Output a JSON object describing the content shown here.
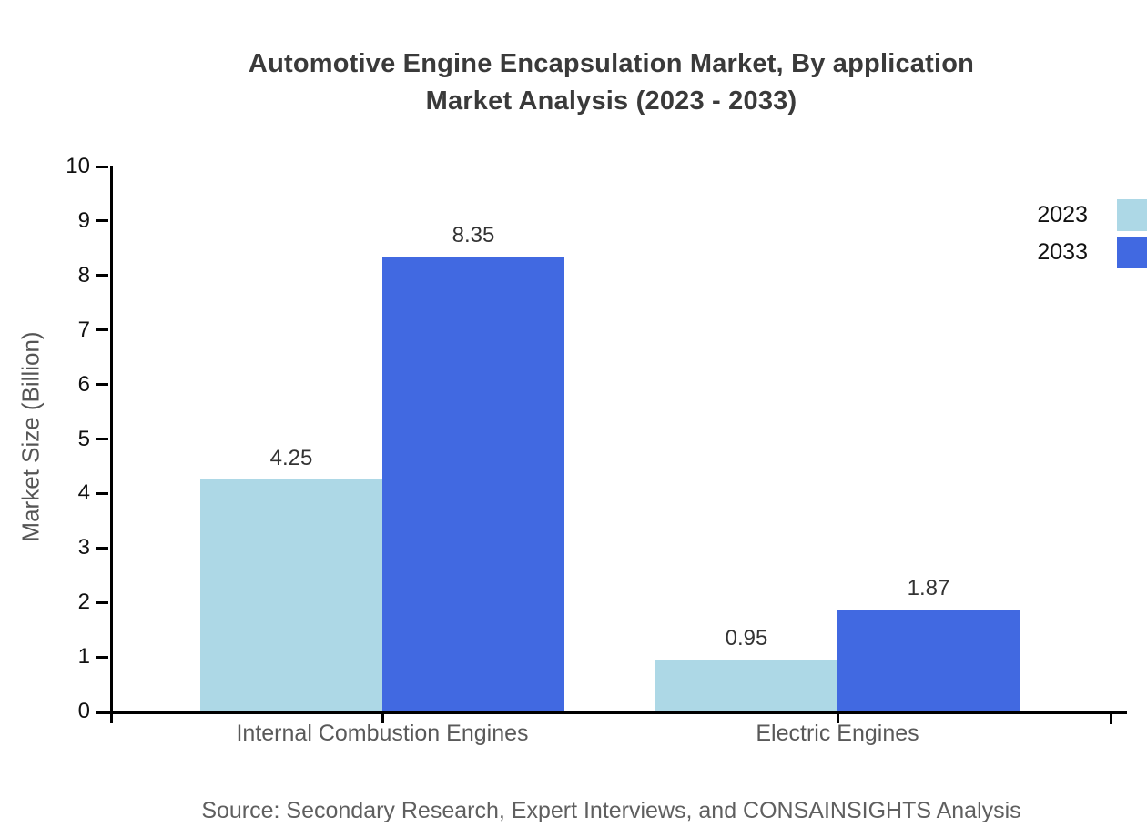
{
  "title": {
    "line1": "Automotive Engine Encapsulation Market, By application",
    "line2": "Market Analysis (2023 - 2033)"
  },
  "y_axis": {
    "label": "Market Size (Billion)",
    "tick_labels": [
      "0",
      "1",
      "2",
      "3",
      "4",
      "5",
      "6",
      "7",
      "8",
      "9",
      "10"
    ]
  },
  "legend": {
    "items": [
      {
        "label": "2023",
        "color": "#ADD8E6"
      },
      {
        "label": "2033",
        "color": "#4169E1"
      }
    ]
  },
  "source": "Source: Secondary Research, Expert Interviews, and CONSAINSIGHTS Analysis",
  "chart_data": {
    "type": "bar",
    "categories": [
      "Internal Combustion Engines",
      "Electric Engines"
    ],
    "series": [
      {
        "name": "2023",
        "color": "#ADD8E6",
        "values": [
          4.25,
          0.95
        ]
      },
      {
        "name": "2033",
        "color": "#4169E1",
        "values": [
          8.35,
          1.87
        ]
      }
    ],
    "value_labels": [
      [
        "4.25",
        "0.95"
      ],
      [
        "8.35",
        "1.87"
      ]
    ],
    "title": "Automotive Engine Encapsulation Market, By application Market Analysis (2023 - 2033)",
    "xlabel": "",
    "ylabel": "Market Size (Billion)",
    "ylim": [
      0,
      10
    ],
    "grid": false,
    "legend_position": "top-right"
  }
}
